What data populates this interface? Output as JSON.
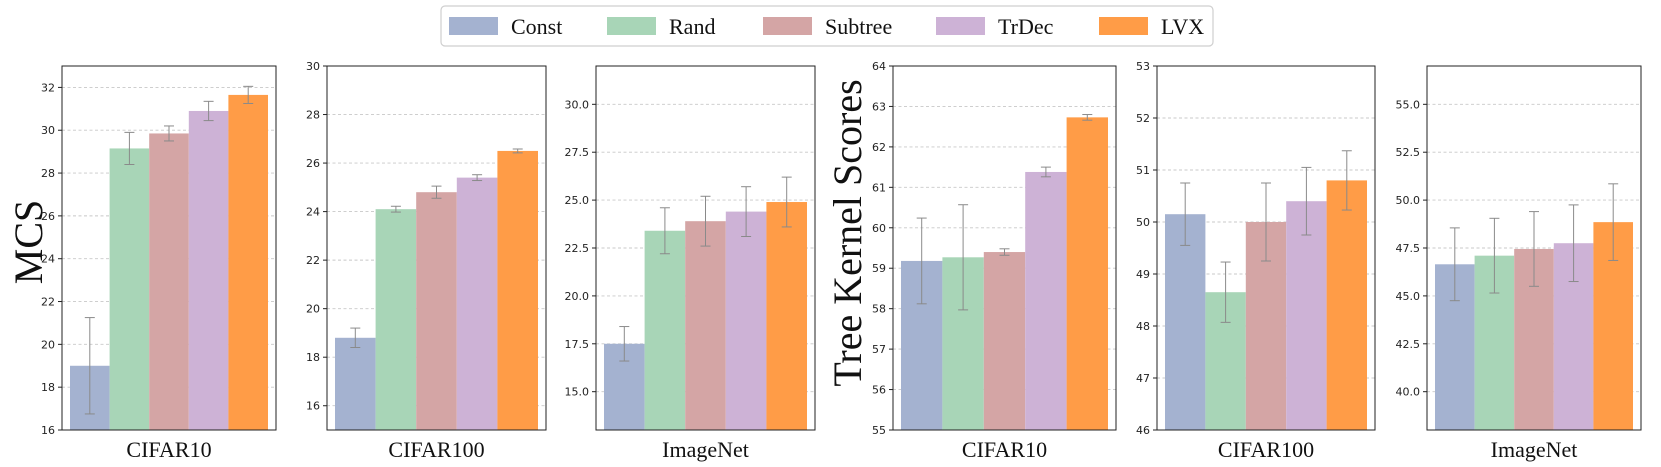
{
  "legend": {
    "entries": [
      {
        "name": "Const",
        "color": "#a4b2d0"
      },
      {
        "name": "Rand",
        "color": "#a8d5b7"
      },
      {
        "name": "Subtree",
        "color": "#d4a5a5"
      },
      {
        "name": "TrDec",
        "color": "#cdb2d6"
      },
      {
        "name": "LVX",
        "color": "#ff9c47"
      }
    ]
  },
  "chart_data": [
    {
      "type": "bar",
      "group": "MCS",
      "ylabel": "MCS",
      "xlabel": "CIFAR10",
      "ylim": [
        16,
        33
      ],
      "yticks": [
        16,
        18,
        20,
        22,
        24,
        26,
        28,
        30,
        32
      ],
      "tick_labels": [
        "16",
        "18",
        "20",
        "22",
        "24",
        "26",
        "28",
        "30",
        "32"
      ],
      "series": [
        {
          "name": "Const",
          "value": 19.0,
          "err": 2.25
        },
        {
          "name": "Rand",
          "value": 29.15,
          "err": 0.75
        },
        {
          "name": "Subtree",
          "value": 29.85,
          "err": 0.35
        },
        {
          "name": "TrDec",
          "value": 30.9,
          "err": 0.45
        },
        {
          "name": "LVX",
          "value": 31.65,
          "err": 0.4
        }
      ]
    },
    {
      "type": "bar",
      "group": "MCS",
      "ylabel": "",
      "xlabel": "CIFAR100",
      "ylim": [
        15,
        30
      ],
      "yticks": [
        16,
        18,
        20,
        22,
        24,
        26,
        28,
        30
      ],
      "tick_labels": [
        "16",
        "18",
        "20",
        "22",
        "24",
        "26",
        "28",
        "30"
      ],
      "series": [
        {
          "name": "Const",
          "value": 18.8,
          "err": 0.4
        },
        {
          "name": "Rand",
          "value": 24.1,
          "err": 0.12
        },
        {
          "name": "Subtree",
          "value": 24.8,
          "err": 0.25
        },
        {
          "name": "TrDec",
          "value": 25.4,
          "err": 0.12
        },
        {
          "name": "LVX",
          "value": 26.5,
          "err": 0.08
        }
      ]
    },
    {
      "type": "bar",
      "group": "MCS",
      "ylabel": "",
      "xlabel": "ImageNet",
      "ylim": [
        13.0,
        32.0
      ],
      "yticks": [
        15.0,
        17.5,
        20.0,
        22.5,
        25.0,
        27.5,
        30.0
      ],
      "tick_labels": [
        "15.0",
        "17.5",
        "20.0",
        "22.5",
        "25.0",
        "27.5",
        "30.0"
      ],
      "series": [
        {
          "name": "Const",
          "value": 17.5,
          "err": 0.9
        },
        {
          "name": "Rand",
          "value": 23.4,
          "err": 1.2
        },
        {
          "name": "Subtree",
          "value": 23.9,
          "err": 1.3
        },
        {
          "name": "TrDec",
          "value": 24.4,
          "err": 1.3
        },
        {
          "name": "LVX",
          "value": 24.9,
          "err": 1.3
        }
      ]
    },
    {
      "type": "bar",
      "group": "Tree Kernel Scores",
      "ylabel": "Tree Kernel Scores",
      "xlabel": "CIFAR10",
      "ylim": [
        55,
        64
      ],
      "yticks": [
        55,
        56,
        57,
        58,
        59,
        60,
        61,
        62,
        63,
        64
      ],
      "tick_labels": [
        "55",
        "56",
        "57",
        "58",
        "59",
        "60",
        "61",
        "62",
        "63",
        "64"
      ],
      "series": [
        {
          "name": "Const",
          "value": 59.18,
          "err": 1.06
        },
        {
          "name": "Rand",
          "value": 59.27,
          "err": 1.3
        },
        {
          "name": "Subtree",
          "value": 59.4,
          "err": 0.08
        },
        {
          "name": "TrDec",
          "value": 61.38,
          "err": 0.12
        },
        {
          "name": "LVX",
          "value": 62.73,
          "err": 0.07
        }
      ]
    },
    {
      "type": "bar",
      "group": "Tree Kernel Scores",
      "ylabel": "",
      "xlabel": "CIFAR100",
      "ylim": [
        46,
        53
      ],
      "yticks": [
        46,
        47,
        48,
        49,
        50,
        51,
        52,
        53
      ],
      "tick_labels": [
        "46",
        "47",
        "48",
        "49",
        "50",
        "51",
        "52",
        "53"
      ],
      "series": [
        {
          "name": "Const",
          "value": 50.15,
          "err": 0.6
        },
        {
          "name": "Rand",
          "value": 48.65,
          "err": 0.58
        },
        {
          "name": "Subtree",
          "value": 50.0,
          "err": 0.75
        },
        {
          "name": "TrDec",
          "value": 50.4,
          "err": 0.65
        },
        {
          "name": "LVX",
          "value": 50.8,
          "err": 0.57
        }
      ]
    },
    {
      "type": "bar",
      "group": "Tree Kernel Scores",
      "ylabel": "",
      "xlabel": "ImageNet",
      "ylim": [
        38.0,
        57.0
      ],
      "yticks": [
        40.0,
        42.5,
        45.0,
        47.5,
        50.0,
        52.5,
        55.0
      ],
      "tick_labels": [
        "40.0",
        "42.5",
        "45.0",
        "47.5",
        "50.0",
        "52.5",
        "55.0"
      ],
      "series": [
        {
          "name": "Const",
          "value": 46.65,
          "err": 1.9
        },
        {
          "name": "Rand",
          "value": 47.1,
          "err": 1.95
        },
        {
          "name": "Subtree",
          "value": 47.45,
          "err": 1.95
        },
        {
          "name": "TrDec",
          "value": 47.75,
          "err": 2.0
        },
        {
          "name": "LVX",
          "value": 48.85,
          "err": 2.0
        }
      ]
    }
  ]
}
